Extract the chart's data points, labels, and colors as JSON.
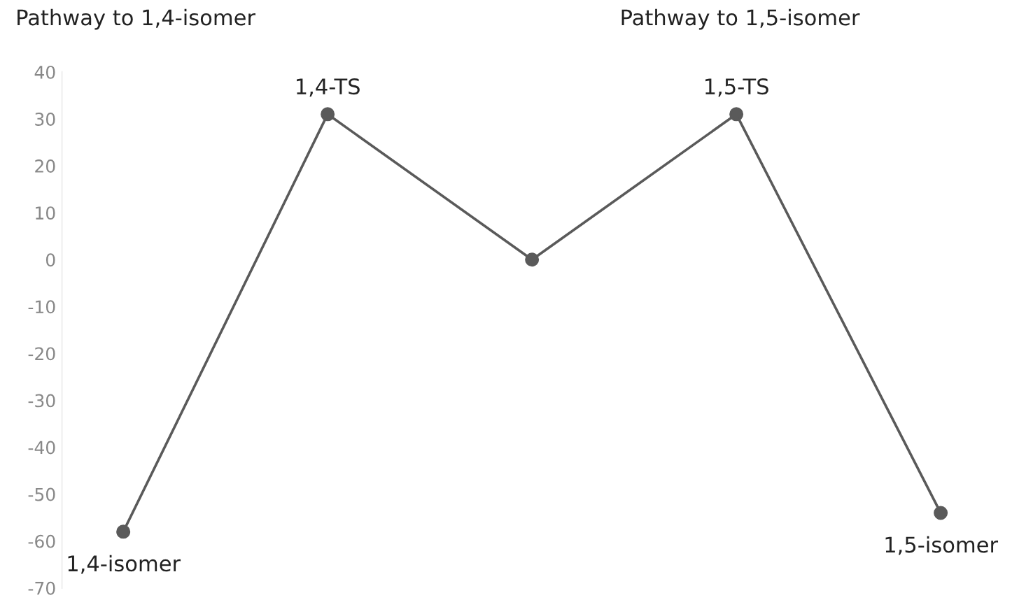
{
  "chart_data": {
    "type": "line",
    "categories": [
      null,
      null,
      null,
      null,
      null
    ],
    "series": [
      {
        "color": "#5a5a5a",
        "values": [
          -58,
          31,
          0,
          31,
          -54
        ]
      }
    ],
    "ylim": [
      -70,
      40
    ],
    "yticks": [
      40,
      30,
      20,
      10,
      0,
      -10,
      -20,
      -30,
      -40,
      -50,
      -60,
      -70
    ],
    "tick_labels": "y",
    "marker": "circle",
    "line_style": "solid",
    "annotations": [
      "Pathway to 1,4-isomer",
      "Pathway to 1,5-isomer",
      {
        "text": "1,4-isomer",
        "y": -58
      },
      {
        "text": "1,4-TS",
        "y": 31
      },
      {
        "text": "1,5-TS",
        "y": 31
      },
      {
        "text": "1,5-isomer",
        "y": -54
      }
    ]
  }
}
